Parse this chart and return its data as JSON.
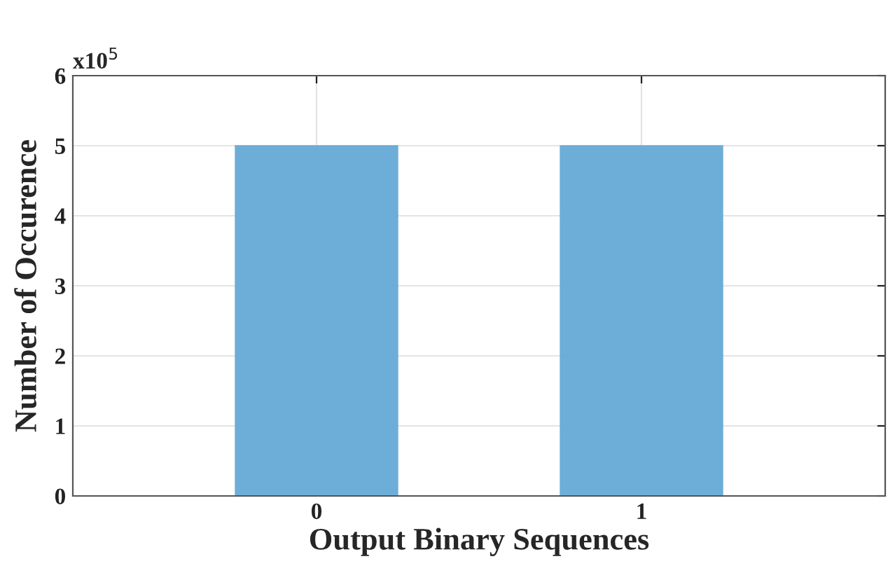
{
  "chart_data": {
    "type": "bar",
    "xlabel": "Output Binary Sequences",
    "ylabel": "Number of Occurence",
    "x": [
      0,
      1
    ],
    "values": [
      5,
      5
    ],
    "color": "#66aad6",
    "xlim": [
      -0.75,
      1.75
    ],
    "xticks": [
      0,
      1
    ],
    "ylim": [
      0,
      6
    ],
    "yticks": [
      0,
      1,
      2,
      3,
      4,
      5,
      6
    ],
    "annotations": [
      "x10$^{5}$"
    ],
    "grid": true
  }
}
